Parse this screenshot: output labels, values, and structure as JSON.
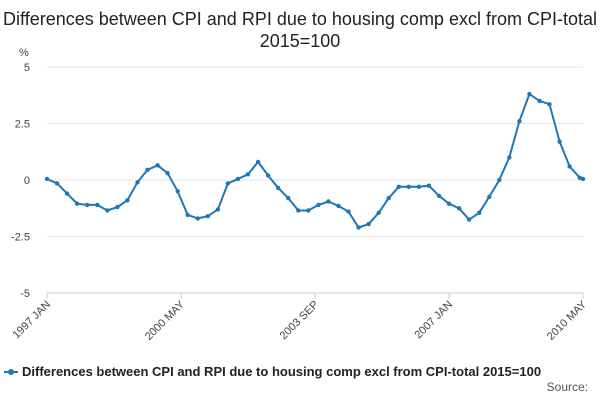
{
  "chart_data": {
    "type": "line",
    "title": "Differences between CPI and RPI due to housing comp excl from CPI-total 2015=100",
    "ylabel": "%",
    "xlabel": "",
    "ylim": [
      -5,
      5
    ],
    "yticks": [
      "5",
      "2.5",
      "0",
      "-2.5",
      "-5"
    ],
    "ytick_values": [
      5,
      2.5,
      0,
      -2.5,
      -5
    ],
    "xticks": [
      "1997 JAN",
      "2000 MAY",
      "2003 SEP",
      "2007 JAN",
      "2010 MAY"
    ],
    "xtick_values": [
      1997.0,
      2000.333,
      2003.667,
      2007.0,
      2010.333
    ],
    "grid": true,
    "legend_position": "bottom",
    "series": [
      {
        "name": "Differences between CPI and RPI due to housing comp excl from CPI-total 2015=100",
        "color": "#1f77b4",
        "x": [
          1997.0,
          1997.25,
          1997.5,
          1997.75,
          1998.0,
          1998.25,
          1998.5,
          1998.75,
          1999.0,
          1999.25,
          1999.5,
          1999.75,
          2000.0,
          2000.25,
          2000.5,
          2000.75,
          2001.0,
          2001.25,
          2001.5,
          2001.75,
          2002.0,
          2002.25,
          2002.5,
          2002.75,
          2003.0,
          2003.25,
          2003.5,
          2003.75,
          2004.0,
          2004.25,
          2004.5,
          2004.75,
          2005.0,
          2005.25,
          2005.5,
          2005.75,
          2006.0,
          2006.25,
          2006.5,
          2006.75,
          2007.0,
          2007.25,
          2007.5,
          2007.75,
          2008.0,
          2008.25,
          2008.5,
          2008.75,
          2009.0,
          2009.25,
          2009.5,
          2009.75,
          2010.0,
          2010.25,
          2010.333
        ],
        "values": [
          0.05,
          -0.15,
          -0.6,
          -1.05,
          -1.1,
          -1.1,
          -1.35,
          -1.2,
          -0.9,
          -0.1,
          0.45,
          0.65,
          0.3,
          -0.5,
          -1.55,
          -1.7,
          -1.6,
          -1.3,
          -0.15,
          0.05,
          0.25,
          0.8,
          0.2,
          -0.35,
          -0.8,
          -1.35,
          -1.35,
          -1.1,
          -0.95,
          -1.15,
          -1.4,
          -2.1,
          -1.95,
          -1.45,
          -0.8,
          -0.3,
          -0.3,
          -0.3,
          -0.25,
          -0.7,
          -1.05,
          -1.25,
          -1.75,
          -1.45,
          -0.75,
          0.0,
          1.0,
          2.6,
          3.8,
          3.5,
          3.35,
          1.7,
          0.6,
          0.1,
          0.05
        ]
      }
    ]
  },
  "legend": {
    "label": "Differences between CPI and RPI due to housing comp excl from CPI-total 2015=100"
  },
  "source": {
    "label": "Source:"
  }
}
